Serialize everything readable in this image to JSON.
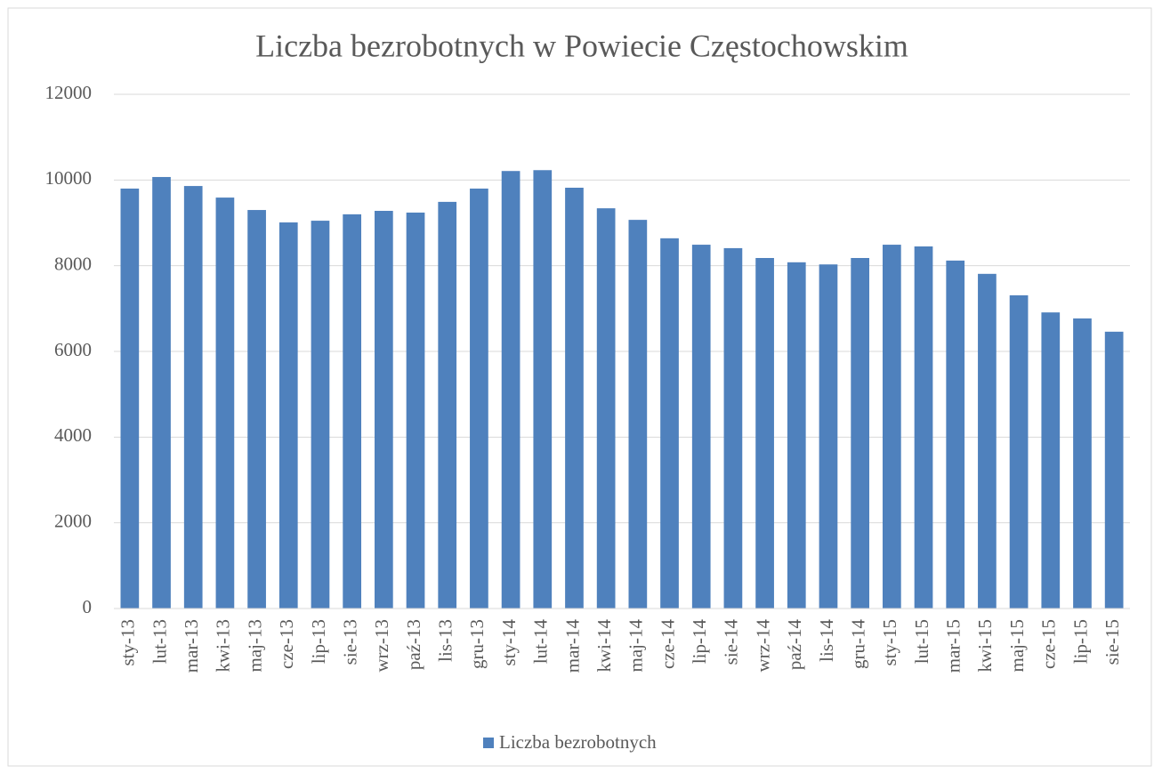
{
  "chart_data": {
    "type": "bar",
    "title": "Liczba bezrobotnych w Powiecie Częstochowskim",
    "categories": [
      "sty-13",
      "lut-13",
      "mar-13",
      "kwi-13",
      "maj-13",
      "cze-13",
      "lip-13",
      "sie-13",
      "wrz-13",
      "paź-13",
      "lis-13",
      "gru-13",
      "sty-14",
      "lut-14",
      "mar-14",
      "kwi-14",
      "maj-14",
      "cze-14",
      "lip-14",
      "sie-14",
      "wrz-14",
      "paź-14",
      "lis-14",
      "gru-14",
      "sty-15",
      "lut-15",
      "mar-15",
      "kwi-15",
      "maj-15",
      "cze-15",
      "lip-15",
      "sie-15"
    ],
    "series": [
      {
        "name": "Liczba bezrobotnych",
        "color": "#4f81bd",
        "values": [
          9800,
          10070,
          9860,
          9590,
          9300,
          9010,
          9050,
          9200,
          9280,
          9240,
          9490,
          9800,
          10210,
          10230,
          9820,
          9340,
          9070,
          8640,
          8490,
          8410,
          8180,
          8080,
          8030,
          8180,
          8490,
          8450,
          8120,
          7810,
          7310,
          6910,
          6770,
          6460
        ]
      }
    ],
    "ylim": [
      0,
      12000
    ],
    "yticks": [
      0,
      2000,
      4000,
      6000,
      8000,
      10000,
      12000
    ],
    "grid": true,
    "legend": "bottom"
  }
}
